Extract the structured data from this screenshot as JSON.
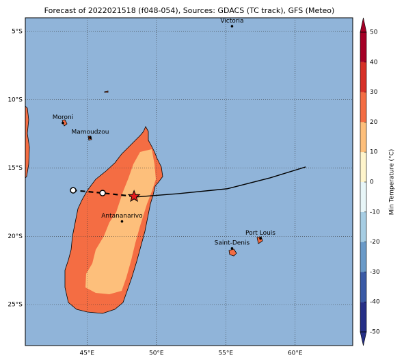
{
  "chart_data": {
    "type": "map",
    "title": "Forecast of 2022021518 (f048-054), Sources: GDACS (TC track), GFS (Meteo)",
    "xlim": [
      40.55,
      64.15
    ],
    "ylim": [
      -28,
      -4
    ],
    "xticks": [
      {
        "value": 45,
        "label": "45°E"
      },
      {
        "value": 50,
        "label": "50°E"
      },
      {
        "value": 55,
        "label": "55°E"
      },
      {
        "value": 60,
        "label": "60°E"
      }
    ],
    "yticks": [
      {
        "value": -5,
        "label": "5°S"
      },
      {
        "value": -10,
        "label": "10°S"
      },
      {
        "value": -15,
        "label": "15°S"
      },
      {
        "value": -20,
        "label": "20°S"
      },
      {
        "value": -25,
        "label": "25°S"
      }
    ],
    "grid": true,
    "ocean_color": "#90b4d9",
    "track_forecast": {
      "lon": [
        48.39,
        51.54,
        55.09,
        58.19,
        60.76
      ],
      "lat": [
        -17.13,
        -16.88,
        -16.52,
        -15.72,
        -14.92
      ],
      "color": "#000000"
    },
    "track_past": {
      "lon": [
        48.39,
        46.12,
        44.0
      ],
      "lat": [
        -17.08,
        -16.83,
        -16.63
      ],
      "color": "#000000"
    },
    "current_position": {
      "lon": 48.39,
      "lat": -17.08,
      "color": "#e41a1c"
    },
    "cities": [
      {
        "name": "Victoria",
        "lon": 55.45,
        "lat": -4.62
      },
      {
        "name": "Moroni",
        "lon": 43.26,
        "lat": -11.7
      },
      {
        "name": "Mamoudzou",
        "lon": 45.23,
        "lat": -12.78
      },
      {
        "name": "Antananarivo",
        "lon": 47.52,
        "lat": -18.91
      },
      {
        "name": "Port Louis",
        "lon": 57.5,
        "lat": -20.16
      },
      {
        "name": "Saint-Denis",
        "lon": 55.45,
        "lat": -20.88
      }
    ],
    "colorbar": {
      "label": "Min Temperature (°C)",
      "ticks": [
        -50,
        -40,
        -30,
        -20,
        -10,
        0,
        10,
        20,
        30,
        40,
        50
      ],
      "colors": [
        "#262f87",
        "#3a5aa6",
        "#6a9ac8",
        "#a6cde3",
        "#e8f6f8",
        "#fff5cc",
        "#fdbf7b",
        "#f46d43",
        "#d73027",
        "#a50026"
      ]
    }
  }
}
